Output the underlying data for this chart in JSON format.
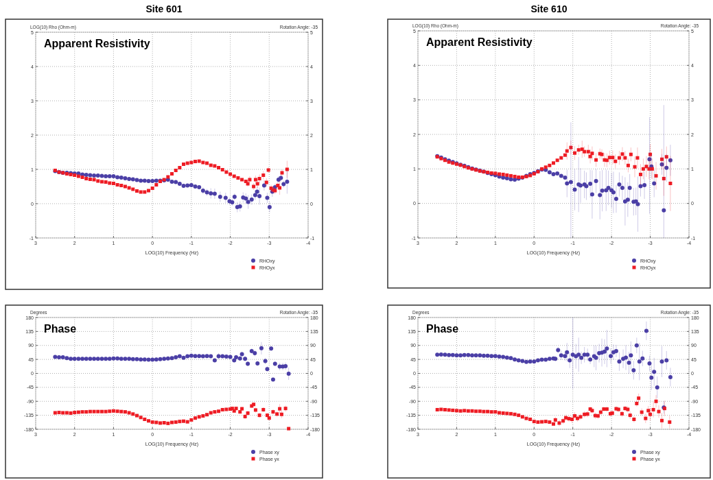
{
  "chart_data": [
    {
      "type": "scatter",
      "title": "Site 601",
      "subtitle": "Apparent Resistivity",
      "xlabel": "LOG(10) Frequency (Hz)",
      "ylabel": "LOG(10) Rho (Ohm-m)",
      "annotations": [
        "Rotation Angle: -35"
      ],
      "xlim": [
        3,
        -4
      ],
      "xticks": [
        3,
        2,
        1,
        0,
        -1,
        -2,
        -3,
        -4
      ],
      "ylim": [
        -1,
        5
      ],
      "yticks": [
        -1,
        0,
        1,
        2,
        3,
        4,
        5
      ],
      "y2lim": [
        -1,
        5
      ],
      "y2ticks": [
        -1,
        0,
        1,
        2,
        3,
        4,
        5
      ],
      "grid": true,
      "legend": "bottom right",
      "series": [
        {
          "name": "RHOxy",
          "color": "#4b3fa6",
          "marker": "circle",
          "x": [
            2.5,
            2.4,
            2.3,
            2.2,
            2.1,
            2.0,
            1.9,
            1.8,
            1.7,
            1.6,
            1.5,
            1.4,
            1.3,
            1.2,
            1.1,
            1.0,
            0.9,
            0.8,
            0.7,
            0.6,
            0.5,
            0.4,
            0.3,
            0.2,
            0.1,
            0,
            -0.1,
            -0.2,
            -0.3,
            -0.4,
            -0.5,
            -0.6,
            -0.7,
            -0.8,
            -0.9,
            -1.0,
            -1.1,
            -1.2,
            -1.3,
            -1.4,
            -1.5,
            -1.6,
            -1.74,
            -1.88,
            -1.98,
            -2.05,
            -2.11,
            -2.18,
            -2.25,
            -2.33,
            -2.4,
            -2.46,
            -2.55,
            -2.64,
            -2.69,
            -2.75,
            -2.87,
            -2.95,
            -3.01,
            -3.08,
            -3.15,
            -3.24,
            -3.3,
            -3.37,
            -3.46
          ],
          "values": [
            0.95,
            0.92,
            0.9,
            0.9,
            0.89,
            0.88,
            0.88,
            0.85,
            0.84,
            0.83,
            0.82,
            0.82,
            0.81,
            0.8,
            0.8,
            0.8,
            0.77,
            0.76,
            0.74,
            0.72,
            0.71,
            0.69,
            0.67,
            0.67,
            0.66,
            0.66,
            0.67,
            0.67,
            0.68,
            0.7,
            0.64,
            0.63,
            0.58,
            0.52,
            0.53,
            0.54,
            0.5,
            0.48,
            0.38,
            0.33,
            0.3,
            0.29,
            0.2,
            0.17,
            0.07,
            0.04,
            0.2,
            -0.1,
            -0.08,
            0.18,
            0.15,
            0.05,
            0.12,
            0.25,
            0.35,
            0.22,
            0.53,
            0.17,
            -0.1,
            0.35,
            0.48,
            0.7,
            0.75,
            0.57,
            0.64
          ],
          "errors": [
            null,
            null,
            null,
            null,
            null,
            null,
            null,
            null,
            null,
            null,
            null,
            null,
            null,
            null,
            null,
            null,
            null,
            null,
            null,
            null,
            null,
            null,
            null,
            null,
            null,
            null,
            null,
            null,
            null,
            null,
            null,
            null,
            null,
            null,
            null,
            null,
            null,
            null,
            0.1,
            0.1,
            0.15,
            0.15,
            0.15,
            0.15,
            0.1,
            0.1,
            0.1,
            0.15,
            0.15,
            0.15,
            0.15,
            0.2,
            0.15,
            0.15,
            0.15,
            0.25,
            0.15,
            0.15,
            0.15,
            0.15,
            0.1,
            0.1,
            0.1,
            0.1,
            0.35
          ]
        },
        {
          "name": "RHOyx",
          "color": "#ee1c24",
          "marker": "square",
          "x": [
            2.5,
            2.4,
            2.3,
            2.2,
            2.1,
            2.0,
            1.9,
            1.8,
            1.7,
            1.6,
            1.5,
            1.4,
            1.3,
            1.2,
            1.1,
            1.0,
            0.9,
            0.8,
            0.7,
            0.6,
            0.5,
            0.4,
            0.3,
            0.2,
            0.1,
            0,
            -0.1,
            -0.2,
            -0.3,
            -0.4,
            -0.5,
            -0.6,
            -0.7,
            -0.8,
            -0.9,
            -1.0,
            -1.1,
            -1.2,
            -1.3,
            -1.4,
            -1.5,
            -1.6,
            -1.7,
            -1.8,
            -1.9,
            -2.0,
            -2.1,
            -2.2,
            -2.3,
            -2.4,
            -2.45,
            -2.5,
            -2.6,
            -2.65,
            -2.7,
            -2.75,
            -2.85,
            -2.93,
            -2.98,
            -3.05,
            -3.1,
            -3.15,
            -3.22,
            -3.27,
            -3.33,
            -3.46
          ],
          "values": [
            0.97,
            0.92,
            0.9,
            0.87,
            0.85,
            0.83,
            0.8,
            0.77,
            0.73,
            0.71,
            0.7,
            0.66,
            0.64,
            0.63,
            0.6,
            0.59,
            0.55,
            0.53,
            0.5,
            0.46,
            0.42,
            0.37,
            0.34,
            0.34,
            0.38,
            0.45,
            0.55,
            0.65,
            0.7,
            0.78,
            0.87,
            0.97,
            1.05,
            1.15,
            1.18,
            1.2,
            1.23,
            1.24,
            1.2,
            1.18,
            1.12,
            1.1,
            1.05,
            0.99,
            0.92,
            0.86,
            0.8,
            0.75,
            0.7,
            0.65,
            0.58,
            0.7,
            0.5,
            0.7,
            0.58,
            0.73,
            0.83,
            0.62,
            0.98,
            0.45,
            0.4,
            0.38,
            0.53,
            0.46,
            0.9,
            1.0
          ],
          "errors": [
            null,
            null,
            null,
            null,
            null,
            null,
            null,
            null,
            null,
            null,
            null,
            null,
            null,
            null,
            null,
            null,
            null,
            null,
            null,
            null,
            null,
            null,
            null,
            null,
            null,
            null,
            null,
            null,
            null,
            null,
            null,
            null,
            null,
            null,
            null,
            null,
            null,
            null,
            null,
            null,
            null,
            null,
            null,
            null,
            null,
            null,
            null,
            null,
            null,
            null,
            0.08,
            0.1,
            0.1,
            0.12,
            0.12,
            0.12,
            0.12,
            0.12,
            0.08,
            0.1,
            0.1,
            0.1,
            0.1,
            0.2,
            0.1,
            0.25
          ]
        }
      ]
    },
    {
      "type": "scatter",
      "title": "Site 610",
      "subtitle": "Apparent Resistivity",
      "xlabel": "LOG(10) Frequency (Hz)",
      "ylabel": "LOG(10) Rho (Ohm-m)",
      "annotations": [
        "Rotation Angle: -35"
      ],
      "xlim": [
        3,
        -4
      ],
      "xticks": [
        3,
        2,
        1,
        0,
        -1,
        -2,
        -3,
        -4
      ],
      "ylim": [
        -1,
        5
      ],
      "yticks": [
        -1,
        0,
        1,
        2,
        3,
        4,
        5
      ],
      "y2lim": [
        -1,
        5
      ],
      "y2ticks": [
        -1,
        0,
        1,
        2,
        3,
        4,
        5
      ],
      "grid": true,
      "legend": "bottom right",
      "series": [
        {
          "name": "RHOxy",
          "color": "#4b3fa6",
          "marker": "circle",
          "x": [
            2.5,
            2.4,
            2.3,
            2.2,
            2.1,
            2.0,
            1.9,
            1.8,
            1.7,
            1.6,
            1.5,
            1.4,
            1.3,
            1.2,
            1.1,
            1.0,
            0.9,
            0.8,
            0.7,
            0.6,
            0.5,
            0.4,
            0.3,
            0.2,
            0.1,
            0,
            -0.1,
            -0.2,
            -0.3,
            -0.4,
            -0.5,
            -0.6,
            -0.7,
            -0.8,
            -0.85,
            -0.95,
            -1.05,
            -1.15,
            -1.2,
            -1.3,
            -1.35,
            -1.45,
            -1.5,
            -1.6,
            -1.7,
            -1.76,
            -1.86,
            -1.92,
            -2.0,
            -2.05,
            -2.12,
            -2.2,
            -2.28,
            -2.35,
            -2.42,
            -2.47,
            -2.57,
            -2.63,
            -2.68,
            -2.75,
            -2.85,
            -2.98,
            -3.03,
            -3.1,
            -3.3,
            -3.35,
            -3.42,
            -3.52
          ],
          "values": [
            1.37,
            1.33,
            1.28,
            1.24,
            1.2,
            1.16,
            1.12,
            1.09,
            1.05,
            1.01,
            0.98,
            0.95,
            0.92,
            0.88,
            0.85,
            0.82,
            0.78,
            0.75,
            0.73,
            0.7,
            0.69,
            0.72,
            0.75,
            0.8,
            0.85,
            0.88,
            0.93,
            0.98,
            0.97,
            0.9,
            0.85,
            0.87,
            0.8,
            0.75,
            0.58,
            0.62,
            0.4,
            0.55,
            0.52,
            0.55,
            0.5,
            0.57,
            0.26,
            0.65,
            0.24,
            0.37,
            0.38,
            0.45,
            0.38,
            0.32,
            0.13,
            0.55,
            0.45,
            0.06,
            0.11,
            0.45,
            0.05,
            0.06,
            -0.02,
            0.5,
            0.53,
            1.28,
            1.07,
            0.58,
            1.13,
            -0.2,
            1.03,
            1.25
          ],
          "errors": [
            null,
            null,
            null,
            null,
            null,
            null,
            null,
            null,
            null,
            null,
            null,
            null,
            null,
            null,
            null,
            null,
            null,
            null,
            null,
            null,
            null,
            null,
            null,
            null,
            null,
            null,
            null,
            null,
            null,
            null,
            null,
            null,
            null,
            null,
            0.4,
            [
              -1,
              2.35
            ],
            0.6,
            0.8,
            0.5,
            0.4,
            0.4,
            0.4,
            0.7,
            0.35,
            0.7,
            0.6,
            0.6,
            0.5,
            0.5,
            0.6,
            0.4,
            0.35,
            0.35,
            0.7,
            0.5,
            0.4,
            0.4,
            0.4,
            0.8,
            0.3,
            0.4,
            [
              -0.3,
              2.5
            ],
            0.35,
            0.4,
            0.3,
            [
              -1,
              2.85
            ],
            0.4,
            0.45
          ]
        },
        {
          "name": "RHOyx",
          "color": "#ee1c24",
          "marker": "square",
          "x": [
            2.5,
            2.4,
            2.3,
            2.2,
            2.1,
            2.0,
            1.9,
            1.8,
            1.7,
            1.6,
            1.5,
            1.4,
            1.3,
            1.2,
            1.1,
            1.0,
            0.9,
            0.8,
            0.7,
            0.6,
            0.5,
            0.4,
            0.3,
            0.2,
            0.1,
            0,
            -0.1,
            -0.2,
            -0.3,
            -0.4,
            -0.5,
            -0.6,
            -0.7,
            -0.8,
            -0.85,
            -0.95,
            -1.05,
            -1.15,
            -1.24,
            -1.3,
            -1.4,
            -1.45,
            -1.5,
            -1.6,
            -1.7,
            -1.75,
            -1.82,
            -1.88,
            -1.95,
            -2.03,
            -2.1,
            -2.2,
            -2.28,
            -2.35,
            -2.43,
            -2.5,
            -2.6,
            -2.67,
            -2.75,
            -2.82,
            -2.9,
            -2.97,
            -3.0,
            -3.05,
            -3.15,
            -3.3,
            -3.35,
            -3.42,
            -3.52
          ],
          "values": [
            1.35,
            1.3,
            1.25,
            1.2,
            1.17,
            1.14,
            1.11,
            1.07,
            1.03,
            1.0,
            0.97,
            0.94,
            0.92,
            0.9,
            0.88,
            0.87,
            0.85,
            0.84,
            0.82,
            0.8,
            0.78,
            0.76,
            0.76,
            0.78,
            0.81,
            0.86,
            0.92,
            1.0,
            1.05,
            1.1,
            1.17,
            1.25,
            1.32,
            1.4,
            1.52,
            1.62,
            1.46,
            1.55,
            1.57,
            1.5,
            1.5,
            1.36,
            1.45,
            1.26,
            1.44,
            1.42,
            1.26,
            1.25,
            1.33,
            1.33,
            1.22,
            1.32,
            1.43,
            1.32,
            1.1,
            1.42,
            1.06,
            1.32,
            0.84,
            1.0,
            1.07,
            1.0,
            1.42,
            1.0,
            0.8,
            1.28,
            0.72,
            1.35,
            0.58
          ],
          "errors": [
            null,
            null,
            null,
            null,
            null,
            null,
            null,
            null,
            null,
            null,
            null,
            null,
            null,
            null,
            null,
            null,
            null,
            null,
            null,
            null,
            null,
            null,
            null,
            null,
            null,
            null,
            null,
            null,
            null,
            null,
            null,
            null,
            null,
            null,
            0.25,
            0.2,
            0.2,
            0.15,
            0.25,
            0.15,
            0.2,
            0.2,
            0.2,
            0.2,
            0.15,
            0.15,
            0.2,
            0.2,
            0.2,
            0.2,
            0.2,
            0.2,
            0.2,
            0.2,
            0.2,
            0.2,
            0.3,
            0.3,
            0.3,
            0.3,
            0.3,
            0.3,
            0.3,
            0.3,
            0.4,
            0.3,
            0.5,
            0.3,
            0.8
          ]
        }
      ]
    },
    {
      "type": "scatter",
      "subtitle": "Phase",
      "xlabel": "LOG(10) Frequency (Hz)",
      "ylabel": "Degrees",
      "annotations": [
        "Rotation Angle: -35"
      ],
      "xlim": [
        3,
        -4
      ],
      "xticks": [
        3,
        2,
        1,
        0,
        -1,
        -2,
        -3,
        -4
      ],
      "ylim": [
        -180,
        180
      ],
      "yticks": [
        -180,
        -135,
        -90,
        -45,
        0,
        45,
        90,
        135,
        180
      ],
      "y2lim": [
        -180,
        180
      ],
      "y2ticks": [
        -180,
        -135,
        -90,
        -45,
        0,
        45,
        90,
        135,
        180
      ],
      "grid": true,
      "legend": "bottom right",
      "series": [
        {
          "name": "Phase xy",
          "color": "#4b3fa6",
          "marker": "circle",
          "x": [
            2.5,
            2.4,
            2.3,
            2.2,
            2.1,
            2.0,
            1.9,
            1.8,
            1.7,
            1.6,
            1.5,
            1.4,
            1.3,
            1.2,
            1.1,
            1.0,
            0.9,
            0.8,
            0.7,
            0.6,
            0.5,
            0.4,
            0.3,
            0.2,
            0.1,
            0,
            -0.1,
            -0.2,
            -0.3,
            -0.4,
            -0.5,
            -0.6,
            -0.7,
            -0.8,
            -0.9,
            -1.0,
            -1.1,
            -1.2,
            -1.3,
            -1.4,
            -1.5,
            -1.6,
            -1.7,
            -1.8,
            -1.9,
            -2.0,
            -2.1,
            -2.15,
            -2.25,
            -2.3,
            -2.38,
            -2.45,
            -2.55,
            -2.63,
            -2.7,
            -2.8,
            -2.9,
            -2.95,
            -3.05,
            -3.1,
            -3.15,
            -3.27,
            -3.35,
            -3.42,
            -3.5
          ],
          "values": [
            53,
            52,
            52,
            49,
            47,
            47,
            47,
            47,
            47,
            47,
            47,
            47,
            47,
            47,
            47,
            48,
            48,
            47,
            47,
            47,
            46,
            46,
            45,
            45,
            44,
            44,
            45,
            46,
            47,
            48,
            49,
            52,
            55,
            50,
            55,
            57,
            56,
            56,
            55,
            56,
            55,
            42,
            55,
            55,
            54,
            53,
            42,
            52,
            48,
            62,
            47,
            31,
            72,
            65,
            32,
            81,
            40,
            14,
            80,
            -20,
            31,
            22,
            22,
            23,
            -1
          ],
          "errors": [
            null,
            null,
            null,
            null,
            null,
            null,
            null,
            null,
            null,
            null,
            null,
            null,
            null,
            null,
            null,
            null,
            null,
            null,
            null,
            null,
            null,
            null,
            null,
            null,
            null,
            null,
            null,
            null,
            null,
            null,
            null,
            null,
            null,
            null,
            null,
            null,
            null,
            null,
            null,
            null,
            null,
            6,
            10,
            6,
            6,
            6,
            6,
            8,
            8,
            8,
            8,
            8,
            8,
            10,
            8,
            20,
            10,
            8,
            8,
            5,
            8,
            12,
            12,
            12,
            20
          ]
        },
        {
          "name": "Phase yx",
          "color": "#ee1c24",
          "marker": "square",
          "x": [
            2.5,
            2.4,
            2.3,
            2.2,
            2.1,
            2.0,
            1.9,
            1.8,
            1.7,
            1.6,
            1.5,
            1.4,
            1.3,
            1.2,
            1.1,
            1.0,
            0.9,
            0.8,
            0.7,
            0.6,
            0.5,
            0.4,
            0.3,
            0.2,
            0.1,
            0,
            -0.1,
            -0.2,
            -0.3,
            -0.4,
            -0.5,
            -0.6,
            -0.7,
            -0.8,
            -0.9,
            -1.0,
            -1.1,
            -1.2,
            -1.3,
            -1.4,
            -1.5,
            -1.6,
            -1.7,
            -1.8,
            -1.9,
            -2.0,
            -2.05,
            -2.1,
            -2.15,
            -2.25,
            -2.3,
            -2.38,
            -2.45,
            -2.55,
            -2.6,
            -2.65,
            -2.75,
            -2.85,
            -2.95,
            -3.0,
            -3.1,
            -3.2,
            -3.27,
            -3.32,
            -3.42,
            -3.5
          ],
          "values": [
            -127,
            -126,
            -127,
            -127,
            -128,
            -126,
            -125,
            -124,
            -124,
            -123,
            -123,
            -123,
            -123,
            -123,
            -122,
            -121,
            -122,
            -123,
            -124,
            -127,
            -131,
            -136,
            -142,
            -148,
            -153,
            -157,
            -158,
            -160,
            -159,
            -161,
            -158,
            -157,
            -155,
            -154,
            -156,
            -150,
            -144,
            -140,
            -137,
            -133,
            -127,
            -124,
            -122,
            -117,
            -116,
            -115,
            -113,
            -121,
            -113,
            -124,
            -114,
            -139,
            -128,
            -105,
            -100,
            -118,
            -135,
            -117,
            -135,
            -144,
            -124,
            -131,
            -114,
            -132,
            -113,
            -178
          ],
          "errors": [
            null,
            null,
            null,
            null,
            null,
            null,
            null,
            null,
            null,
            null,
            null,
            null,
            null,
            null,
            null,
            null,
            null,
            null,
            null,
            null,
            null,
            null,
            null,
            null,
            null,
            null,
            null,
            null,
            null,
            null,
            null,
            null,
            null,
            null,
            null,
            null,
            null,
            null,
            null,
            null,
            null,
            null,
            null,
            null,
            null,
            null,
            5,
            5,
            5,
            6,
            6,
            8,
            8,
            6,
            6,
            8,
            8,
            8,
            8,
            8,
            8,
            8,
            15,
            12,
            10,
            null
          ]
        }
      ]
    },
    {
      "type": "scatter",
      "subtitle": "Phase",
      "xlabel": "LOG(10) Frequency (Hz)",
      "ylabel": "Degrees",
      "annotations": [
        "Rotation Angle: -35"
      ],
      "xlim": [
        3,
        -4
      ],
      "xticks": [
        3,
        2,
        1,
        0,
        -1,
        -2,
        -3,
        -4
      ],
      "ylim": [
        -180,
        180
      ],
      "yticks": [
        -180,
        -135,
        -90,
        -45,
        0,
        45,
        90,
        135,
        180
      ],
      "y2lim": [
        -180,
        180
      ],
      "y2ticks": [
        -180,
        -135,
        -90,
        -45,
        0,
        45,
        90,
        135,
        180
      ],
      "grid": true,
      "legend": "bottom right",
      "series": [
        {
          "name": "Phase xy",
          "color": "#4b3fa6",
          "marker": "circle",
          "x": [
            2.5,
            2.4,
            2.3,
            2.2,
            2.1,
            2.0,
            1.9,
            1.8,
            1.7,
            1.6,
            1.5,
            1.4,
            1.3,
            1.2,
            1.1,
            1.0,
            0.9,
            0.8,
            0.7,
            0.6,
            0.5,
            0.4,
            0.3,
            0.2,
            0.1,
            0,
            -0.1,
            -0.2,
            -0.3,
            -0.4,
            -0.5,
            -0.55,
            -0.62,
            -0.7,
            -0.8,
            -0.85,
            -0.92,
            -1.0,
            -1.08,
            -1.15,
            -1.22,
            -1.3,
            -1.38,
            -1.45,
            -1.55,
            -1.6,
            -1.68,
            -1.75,
            -1.82,
            -1.88,
            -1.98,
            -2.05,
            -2.12,
            -2.2,
            -2.3,
            -2.37,
            -2.45,
            -2.5,
            -2.57,
            -2.65,
            -2.72,
            -2.8,
            -2.9,
            -2.98,
            -3.03,
            -3.1,
            -3.18,
            -3.3,
            -3.35,
            -3.42,
            -3.52
          ],
          "values": [
            60,
            61,
            60,
            59,
            59,
            58,
            58,
            59,
            59,
            58,
            58,
            58,
            57,
            57,
            56,
            56,
            54,
            53,
            51,
            49,
            45,
            42,
            40,
            37,
            38,
            38,
            42,
            44,
            44,
            47,
            48,
            47,
            75,
            58,
            56,
            68,
            42,
            60,
            55,
            60,
            50,
            60,
            60,
            45,
            55,
            50,
            65,
            67,
            70,
            80,
            56,
            68,
            72,
            38,
            47,
            51,
            34,
            58,
            10,
            90,
            38,
            48,
            137,
            32,
            -14,
            5,
            -45,
            38,
            -110,
            42,
            -12
          ],
          "errors": [
            null,
            null,
            null,
            null,
            null,
            null,
            null,
            null,
            null,
            null,
            null,
            null,
            null,
            null,
            null,
            null,
            null,
            null,
            null,
            null,
            null,
            null,
            null,
            null,
            null,
            null,
            null,
            null,
            null,
            null,
            null,
            8,
            10,
            15,
            15,
            30,
            25,
            [
              -50,
              180
            ],
            40,
            55,
            20,
            25,
            20,
            15,
            35,
            40,
            30,
            45,
            40,
            60,
            25,
            25,
            20,
            30,
            30,
            40,
            35,
            45,
            30,
            25,
            60,
            25,
            30,
            25,
            40,
            45,
            35,
            50,
            20,
            30,
            30
          ]
        },
        {
          "name": "Phase yx",
          "color": "#ee1c24",
          "marker": "square",
          "x": [
            2.5,
            2.4,
            2.3,
            2.2,
            2.1,
            2.0,
            1.9,
            1.8,
            1.7,
            1.6,
            1.5,
            1.4,
            1.3,
            1.2,
            1.1,
            1.0,
            0.9,
            0.8,
            0.7,
            0.6,
            0.5,
            0.4,
            0.3,
            0.2,
            0.1,
            0,
            -0.1,
            -0.2,
            -0.3,
            -0.4,
            -0.5,
            -0.55,
            -0.65,
            -0.75,
            -0.82,
            -0.9,
            -0.98,
            -1.05,
            -1.12,
            -1.2,
            -1.3,
            -1.38,
            -1.45,
            -1.5,
            -1.58,
            -1.65,
            -1.72,
            -1.8,
            -1.88,
            -1.97,
            -2.02,
            -2.12,
            -2.18,
            -2.27,
            -2.35,
            -2.42,
            -2.48,
            -2.58,
            -2.65,
            -2.7,
            -2.78,
            -2.88,
            -2.95,
            -3.0,
            -3.08,
            -3.15,
            -3.22,
            -3.3,
            -3.37,
            -3.5
          ],
          "values": [
            -117,
            -116,
            -117,
            -118,
            -119,
            -120,
            -121,
            -120,
            -121,
            -121,
            -122,
            -122,
            -123,
            -123,
            -124,
            -124,
            -127,
            -128,
            -129,
            -130,
            -132,
            -135,
            -140,
            -145,
            -148,
            -155,
            -157,
            -156,
            -155,
            -157,
            -163,
            -150,
            -160,
            -153,
            -143,
            -146,
            -148,
            -137,
            -145,
            -140,
            -132,
            -131,
            -115,
            -120,
            -136,
            -137,
            -125,
            -115,
            -115,
            -130,
            -128,
            -114,
            -116,
            -130,
            -113,
            -116,
            -135,
            -148,
            -97,
            -80,
            -125,
            -145,
            -120,
            -132,
            -117,
            -90,
            -123,
            -152,
            -113,
            -157
          ],
          "errors": [
            null,
            null,
            null,
            null,
            null,
            null,
            null,
            null,
            null,
            null,
            null,
            null,
            null,
            null,
            null,
            null,
            null,
            null,
            null,
            null,
            null,
            null,
            null,
            null,
            null,
            null,
            null,
            null,
            null,
            null,
            null,
            10,
            10,
            10,
            10,
            10,
            12,
            12,
            10,
            10,
            10,
            10,
            8,
            8,
            10,
            10,
            10,
            8,
            8,
            10,
            10,
            8,
            8,
            10,
            8,
            10,
            12,
            10,
            10,
            15,
            12,
            15,
            15,
            20,
            25,
            20,
            20,
            25,
            25,
            20
          ]
        }
      ]
    }
  ]
}
